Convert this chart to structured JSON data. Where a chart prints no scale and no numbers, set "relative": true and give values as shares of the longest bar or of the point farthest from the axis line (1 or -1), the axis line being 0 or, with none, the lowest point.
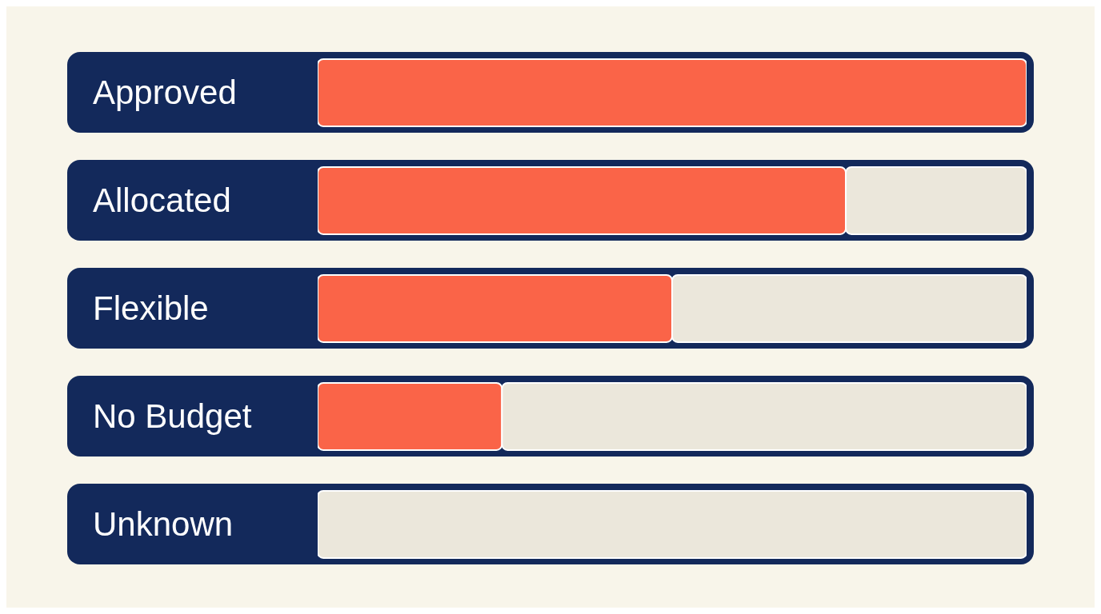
{
  "chart_data": {
    "type": "bar",
    "orientation": "horizontal",
    "relative": true,
    "stacked": true,
    "categories": [
      "Approved",
      "Allocated",
      "Flexible",
      "No Budget",
      "Unknown"
    ],
    "series": [
      {
        "color": "#fa6448",
        "values": [
          1,
          0.745,
          0.5,
          0.26,
          0
        ]
      },
      {
        "color": "#ebe7db",
        "values": [
          0,
          0.255,
          0.5,
          0.74,
          1
        ]
      }
    ]
  }
}
